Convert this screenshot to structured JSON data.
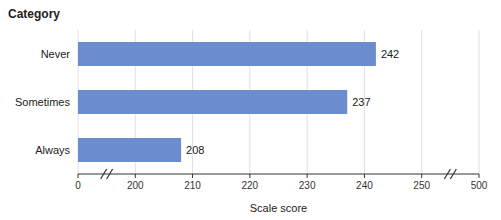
{
  "chart_data": {
    "type": "bar",
    "orientation": "horizontal",
    "title": "Category",
    "x_label": "Scale score",
    "categories": [
      "Always",
      "Sometimes",
      "Never"
    ],
    "values": [
      208,
      237,
      242
    ],
    "color": "#6b8cce",
    "xlim": [
      0,
      500
    ],
    "xticks": [
      0,
      200,
      210,
      220,
      230,
      240,
      250,
      500
    ],
    "grid": true,
    "data_labels": true
  }
}
